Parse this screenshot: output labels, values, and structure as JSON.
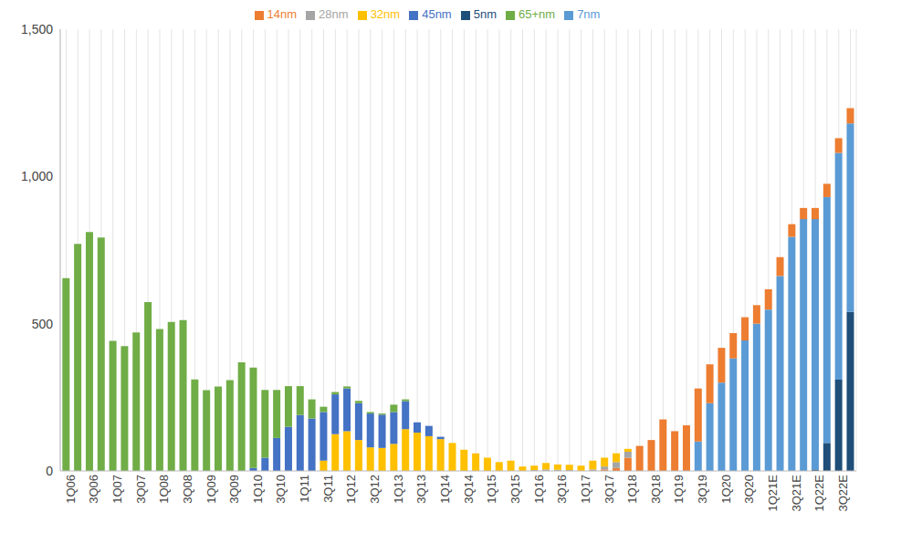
{
  "chart_data": {
    "type": "bar",
    "stacked": true,
    "grid": true,
    "legend": "top",
    "categories": [
      "1Q06",
      null,
      "3Q06",
      null,
      "1Q07",
      null,
      "3Q07",
      null,
      "1Q08",
      null,
      "3Q08",
      null,
      "1Q09",
      null,
      "3Q09",
      null,
      "1Q10",
      null,
      "3Q10",
      null,
      "1Q11",
      null,
      "3Q11",
      null,
      "1Q12",
      null,
      "3Q12",
      null,
      "1Q13",
      null,
      "3Q13",
      null,
      "1Q14",
      null,
      "3Q14",
      null,
      "1Q15",
      null,
      "3Q15",
      null,
      "1Q16",
      null,
      "3Q16",
      null,
      "1Q17",
      null,
      "3Q17",
      null,
      "1Q18",
      null,
      "3Q18",
      null,
      "1Q19",
      null,
      "3Q19",
      null,
      "1Q20",
      null,
      "3Q20",
      null,
      "1Q21E",
      null,
      "3Q21E",
      null,
      "1Q22E",
      null,
      "3Q22E",
      null
    ],
    "ylim": [
      0,
      1500
    ],
    "yticks": [
      0,
      500,
      {
        "value": 1000,
        "label": "1,000"
      },
      {
        "value": 1500,
        "label": "1,500"
      }
    ],
    "series": [
      {
        "name": "5nm",
        "color": "#1f4e79",
        "values": [
          0,
          0,
          0,
          0,
          0,
          0,
          0,
          0,
          0,
          0,
          0,
          0,
          0,
          0,
          0,
          0,
          0,
          0,
          0,
          0,
          0,
          0,
          0,
          0,
          0,
          0,
          0,
          0,
          0,
          0,
          0,
          0,
          0,
          0,
          0,
          0,
          0,
          0,
          0,
          0,
          0,
          0,
          0,
          0,
          0,
          0,
          0,
          0,
          0,
          0,
          0,
          0,
          0,
          0,
          0,
          0,
          0,
          0,
          0,
          0,
          0,
          0,
          0,
          0,
          5,
          95,
          310,
          540
        ]
      },
      {
        "name": "7nm",
        "color": "#5b9bd5",
        "values": [
          0,
          0,
          0,
          0,
          0,
          0,
          0,
          0,
          0,
          0,
          0,
          0,
          0,
          0,
          0,
          0,
          0,
          0,
          0,
          0,
          0,
          0,
          0,
          0,
          0,
          0,
          0,
          0,
          0,
          0,
          0,
          0,
          0,
          0,
          0,
          0,
          0,
          0,
          0,
          0,
          0,
          0,
          0,
          0,
          0,
          0,
          0,
          0,
          0,
          0,
          0,
          0,
          0,
          0,
          100,
          230,
          300,
          382,
          443,
          500,
          548,
          662,
          795,
          855,
          850,
          835,
          770,
          640
        ]
      },
      {
        "name": "14nm",
        "color": "#ed7d31",
        "values": [
          0,
          0,
          0,
          0,
          0,
          0,
          0,
          0,
          0,
          0,
          0,
          0,
          0,
          0,
          0,
          0,
          0,
          0,
          0,
          0,
          0,
          0,
          0,
          0,
          0,
          0,
          0,
          0,
          0,
          0,
          0,
          0,
          0,
          0,
          0,
          0,
          0,
          0,
          0,
          0,
          0,
          0,
          0,
          0,
          0,
          0,
          5,
          10,
          45,
          85,
          105,
          175,
          135,
          155,
          180,
          132,
          118,
          86,
          79,
          63,
          69,
          64,
          43,
          38,
          38,
          45,
          50,
          52
        ]
      },
      {
        "name": "28nm",
        "color": "#a5a5a5",
        "values": [
          0,
          0,
          0,
          0,
          0,
          0,
          0,
          0,
          0,
          0,
          0,
          0,
          0,
          0,
          0,
          0,
          0,
          0,
          0,
          0,
          0,
          0,
          0,
          0,
          0,
          0,
          0,
          0,
          0,
          0,
          0,
          0,
          0,
          0,
          0,
          0,
          0,
          0,
          0,
          0,
          3,
          5,
          4,
          3,
          0,
          5,
          10,
          20,
          20,
          0,
          0,
          0,
          0,
          0,
          0,
          0,
          0,
          0,
          0,
          0,
          0,
          0,
          0,
          0,
          0,
          0,
          0,
          0
        ]
      },
      {
        "name": "32nm",
        "color": "#ffc000",
        "values": [
          0,
          0,
          0,
          0,
          0,
          0,
          0,
          0,
          0,
          0,
          0,
          0,
          0,
          0,
          0,
          0,
          0,
          0,
          0,
          0,
          0,
          0,
          35,
          125,
          135,
          105,
          80,
          78,
          92,
          142,
          130,
          118,
          108,
          95,
          72,
          60,
          45,
          30,
          35,
          15,
          15,
          22,
          18,
          18,
          18,
          30,
          30,
          30,
          10,
          0,
          0,
          0,
          0,
          0,
          0,
          0,
          0,
          0,
          0,
          0,
          0,
          0,
          0,
          0,
          0,
          0,
          0,
          0
        ]
      },
      {
        "name": "45nm",
        "color": "#4472c4",
        "values": [
          0,
          0,
          0,
          0,
          0,
          0,
          0,
          0,
          0,
          0,
          0,
          0,
          0,
          0,
          0,
          0,
          10,
          45,
          112,
          150,
          190,
          178,
          165,
          135,
          145,
          125,
          115,
          113,
          108,
          95,
          35,
          35,
          8,
          0,
          0,
          0,
          0,
          0,
          0,
          0,
          0,
          0,
          0,
          0,
          0,
          0,
          0,
          0,
          0,
          0,
          0,
          0,
          0,
          0,
          0,
          0,
          0,
          0,
          0,
          0,
          0,
          0,
          0,
          0,
          0,
          0,
          0,
          0
        ]
      },
      {
        "name": "65+nm",
        "color": "#70ad47",
        "values": [
          655,
          771,
          811,
          793,
          442,
          424,
          470,
          573,
          482,
          506,
          512,
          311,
          274,
          287,
          308,
          369,
          341,
          230,
          163,
          138,
          98,
          65,
          18,
          8,
          7,
          8,
          5,
          4,
          25,
          6,
          0,
          0,
          0,
          0,
          0,
          0,
          0,
          0,
          0,
          0,
          0,
          0,
          0,
          0,
          0,
          0,
          0,
          0,
          0,
          0,
          0,
          0,
          0,
          0,
          0,
          0,
          0,
          0,
          0,
          0,
          0,
          0,
          0,
          0,
          0,
          0,
          0,
          0
        ]
      }
    ]
  }
}
